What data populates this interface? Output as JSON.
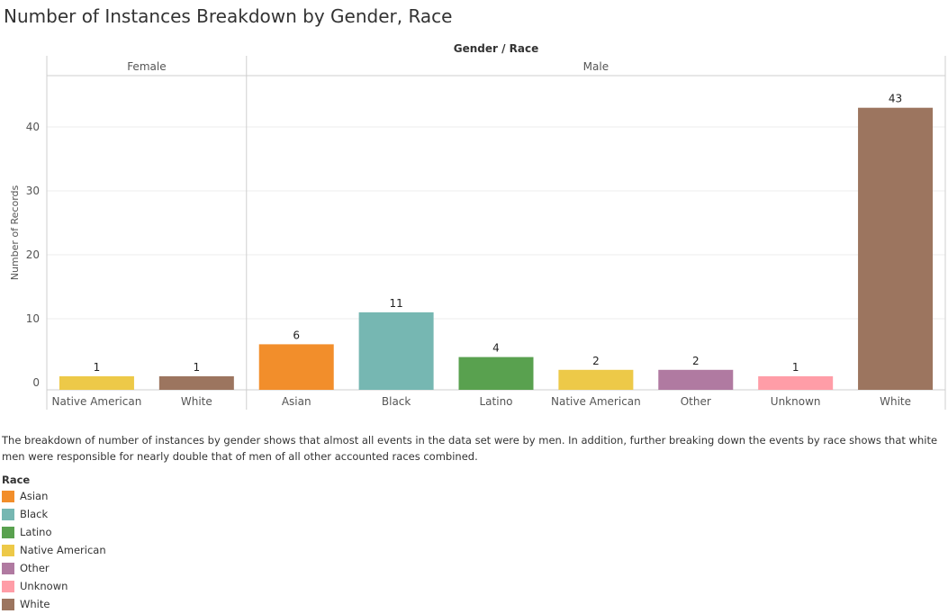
{
  "title": "Number of Instances Breakdown by Gender, Race",
  "caption": "The breakdown of number of instances by gender shows that almost all events in the data set were by men. In addition, further breaking down the events by race shows that white men were responsible for nearly double that of men of all other accounted races combined.",
  "chart_data": {
    "type": "bar",
    "header": "Gender / Race",
    "ylabel": "Number of Records",
    "ylim": [
      0,
      45
    ],
    "yticks": [
      0,
      10,
      20,
      30,
      40
    ],
    "grid": true,
    "data_labels": true,
    "panels": [
      {
        "name": "Female",
        "categories": [
          "Native American",
          "White"
        ],
        "values": [
          1,
          1
        ]
      },
      {
        "name": "Male",
        "categories": [
          "Asian",
          "Black",
          "Latino",
          "Native American",
          "Other",
          "Unknown",
          "White"
        ],
        "values": [
          6,
          11,
          4,
          2,
          2,
          1,
          43
        ]
      }
    ]
  },
  "legend": {
    "title": "Race",
    "placement": "bottom-left",
    "items": [
      {
        "label": "Asian",
        "color": "#f28e2b"
      },
      {
        "label": "Black",
        "color": "#76b7b2"
      },
      {
        "label": "Latino",
        "color": "#59a14f"
      },
      {
        "label": "Native American",
        "color": "#edc948"
      },
      {
        "label": "Other",
        "color": "#b07aa1"
      },
      {
        "label": "Unknown",
        "color": "#ff9da7"
      },
      {
        "label": "White",
        "color": "#9c755f"
      }
    ]
  }
}
